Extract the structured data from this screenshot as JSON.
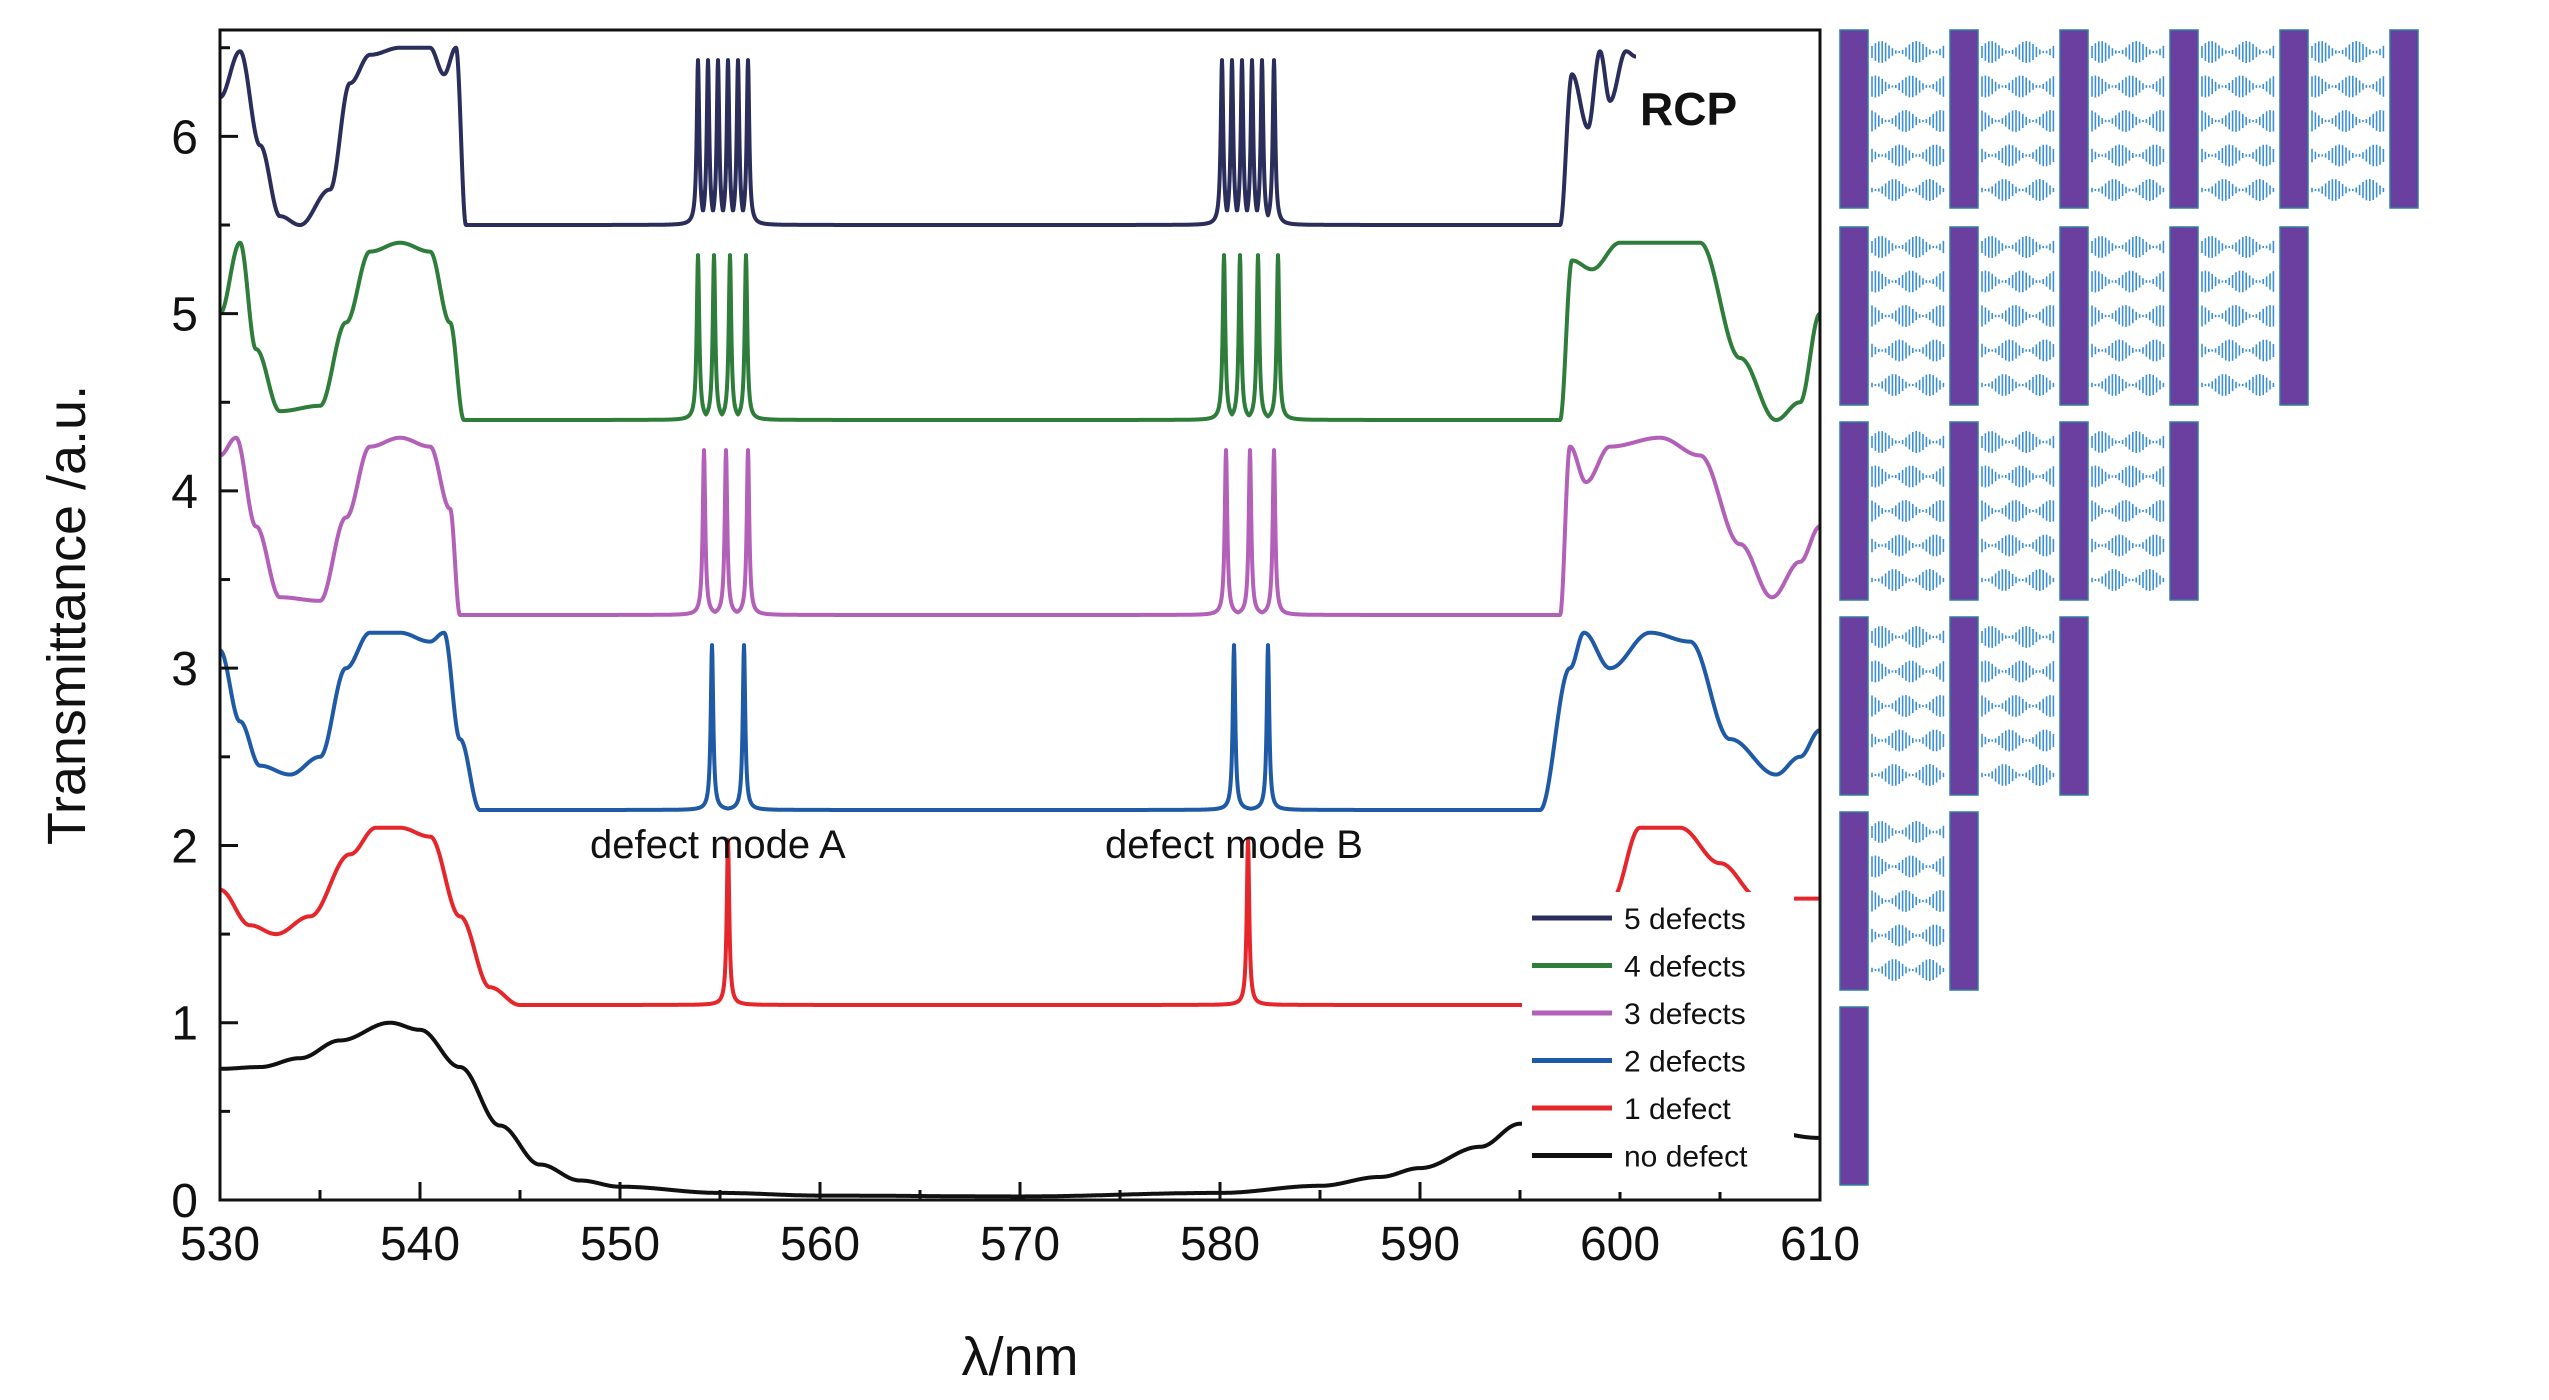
{
  "chart_data": {
    "type": "line",
    "title": "",
    "xlabel": "λ/nm",
    "ylabel": "Transmittance /a.u.",
    "xlim": [
      530,
      610
    ],
    "ylim": [
      0,
      6.6
    ],
    "xticks": [
      530,
      540,
      550,
      560,
      570,
      580,
      590,
      600,
      610
    ],
    "yticks": [
      0,
      1,
      2,
      3,
      4,
      5,
      6
    ],
    "xtick_labels": [
      "530",
      "540",
      "550",
      "560",
      "570",
      "580",
      "590",
      "600",
      "610"
    ],
    "ytick_labels": [
      "0",
      "1",
      "2",
      "3",
      "4",
      "5",
      "6"
    ],
    "grid": false,
    "legend_position": "bottom-right",
    "annotations": {
      "polarization": "RCP",
      "defect_mode_a": "defect mode A",
      "defect_mode_b": "defect mode B"
    },
    "series": [
      {
        "name": "5 defects",
        "color": "#2b2d5a",
        "offset": 5.5,
        "peaks_a": [
          553.9,
          554.4,
          554.9,
          555.4,
          555.9,
          556.4
        ],
        "peaks_b": [
          580.1,
          580.6,
          581.1,
          581.6,
          582.1,
          582.7
        ],
        "points": [
          [
            530,
            0.72
          ],
          [
            531,
            0.98
          ],
          [
            532,
            0.45
          ],
          [
            533,
            0.05
          ],
          [
            534,
            0.0
          ],
          [
            535.5,
            0.2
          ],
          [
            536.5,
            0.8
          ],
          [
            537.5,
            0.96
          ],
          [
            539,
            1.0
          ],
          [
            540.5,
            1.0
          ],
          [
            541.2,
            0.85
          ],
          [
            541.8,
            1.0
          ],
          [
            542.3,
            0.0
          ],
          [
            553,
            0.0
          ],
          [
            597,
            0.0
          ],
          [
            597.6,
            0.85
          ],
          [
            598.4,
            0.55
          ],
          [
            599,
            0.98
          ],
          [
            599.5,
            0.7
          ],
          [
            600.3,
            0.98
          ],
          [
            600.8,
            0.95
          ]
        ]
      },
      {
        "name": "4 defects",
        "color": "#2e7d3a",
        "offset": 4.4,
        "peaks_a": [
          553.9,
          554.7,
          555.5,
          556.3
        ],
        "peaks_b": [
          580.2,
          581.0,
          581.9,
          582.9
        ],
        "points": [
          [
            530,
            0.6
          ],
          [
            531,
            1.0
          ],
          [
            531.8,
            0.4
          ],
          [
            533,
            0.05
          ],
          [
            535,
            0.08
          ],
          [
            536.3,
            0.55
          ],
          [
            537.5,
            0.95
          ],
          [
            539,
            1.0
          ],
          [
            540.5,
            0.95
          ],
          [
            541.5,
            0.55
          ],
          [
            542.2,
            0.0
          ],
          [
            553,
            0.0
          ],
          [
            597,
            0.0
          ],
          [
            597.6,
            0.9
          ],
          [
            598.6,
            0.85
          ],
          [
            600,
            1.0
          ],
          [
            604,
            1.0
          ],
          [
            606,
            0.35
          ],
          [
            607.8,
            0.0
          ],
          [
            609,
            0.1
          ],
          [
            610,
            0.6
          ]
        ]
      },
      {
        "name": "3 defects",
        "color": "#b260b8",
        "offset": 3.3,
        "peaks_a": [
          554.2,
          555.3,
          556.4
        ],
        "peaks_b": [
          580.3,
          581.5,
          582.7
        ],
        "points": [
          [
            530,
            0.9
          ],
          [
            530.8,
            1.0
          ],
          [
            531.8,
            0.5
          ],
          [
            533,
            0.1
          ],
          [
            535,
            0.08
          ],
          [
            536.3,
            0.55
          ],
          [
            537.5,
            0.95
          ],
          [
            539,
            1.0
          ],
          [
            540.5,
            0.95
          ],
          [
            541.5,
            0.6
          ],
          [
            542,
            0.0
          ],
          [
            553,
            0.0
          ],
          [
            597,
            0.0
          ],
          [
            597.5,
            0.95
          ],
          [
            598.3,
            0.75
          ],
          [
            599.5,
            0.95
          ],
          [
            602,
            1.0
          ],
          [
            604,
            0.9
          ],
          [
            606,
            0.4
          ],
          [
            607.6,
            0.1
          ],
          [
            609,
            0.3
          ],
          [
            610,
            0.5
          ]
        ]
      },
      {
        "name": "2 defects",
        "color": "#1f5aa6",
        "offset": 2.2,
        "peaks_a": [
          554.6,
          556.2
        ],
        "peaks_b": [
          580.7,
          582.4
        ],
        "points": [
          [
            530,
            0.9
          ],
          [
            531,
            0.5
          ],
          [
            532,
            0.25
          ],
          [
            533.5,
            0.2
          ],
          [
            535,
            0.3
          ],
          [
            536.3,
            0.8
          ],
          [
            537.5,
            1.0
          ],
          [
            539,
            1.0
          ],
          [
            540.5,
            0.95
          ],
          [
            541.2,
            1.0
          ],
          [
            542,
            0.4
          ],
          [
            543,
            0.0
          ],
          [
            553,
            0.0
          ],
          [
            596,
            0.0
          ],
          [
            597.5,
            0.8
          ],
          [
            598.2,
            1.0
          ],
          [
            599.5,
            0.8
          ],
          [
            601.5,
            1.0
          ],
          [
            603.5,
            0.95
          ],
          [
            605.5,
            0.4
          ],
          [
            607.8,
            0.2
          ],
          [
            609,
            0.3
          ],
          [
            610,
            0.45
          ]
        ]
      },
      {
        "name": "1 defect",
        "color": "#e5262b",
        "offset": 1.1,
        "peaks_a": [
          555.4
        ],
        "peaks_b": [
          581.4
        ],
        "points": [
          [
            530,
            0.65
          ],
          [
            531.5,
            0.45
          ],
          [
            532.8,
            0.4
          ],
          [
            534.5,
            0.5
          ],
          [
            536.5,
            0.85
          ],
          [
            537.8,
            1.0
          ],
          [
            539,
            1.0
          ],
          [
            540.5,
            0.95
          ],
          [
            542,
            0.5
          ],
          [
            543.5,
            0.1
          ],
          [
            545,
            0.0
          ],
          [
            553,
            0.0
          ],
          [
            597,
            0.0
          ],
          [
            598.5,
            0.1
          ],
          [
            599.6,
            0.6
          ],
          [
            601,
            1.0
          ],
          [
            603,
            1.0
          ],
          [
            605,
            0.8
          ],
          [
            607,
            0.6
          ],
          [
            610,
            0.6
          ]
        ]
      },
      {
        "name": "no defect",
        "color": "#111111",
        "offset": 0,
        "peaks_a": [],
        "peaks_b": [],
        "points": [
          [
            530,
            0.74
          ],
          [
            532,
            0.75
          ],
          [
            534,
            0.8
          ],
          [
            536,
            0.9
          ],
          [
            538.5,
            1.0
          ],
          [
            540,
            0.96
          ],
          [
            542,
            0.75
          ],
          [
            544,
            0.42
          ],
          [
            546,
            0.2
          ],
          [
            548,
            0.11
          ],
          [
            550,
            0.075
          ],
          [
            555,
            0.04
          ],
          [
            560,
            0.025
          ],
          [
            570,
            0.02
          ],
          [
            580,
            0.04
          ],
          [
            585,
            0.08
          ],
          [
            588,
            0.13
          ],
          [
            590,
            0.18
          ],
          [
            593,
            0.3
          ],
          [
            595,
            0.43
          ],
          [
            597,
            0.55
          ],
          [
            600,
            0.55
          ],
          [
            605,
            0.45
          ],
          [
            610,
            0.35
          ]
        ]
      }
    ]
  },
  "schematics": {
    "rows": [
      5,
      4,
      3,
      2,
      1,
      0
    ],
    "plate_color": "#6b3fa0",
    "layer_color": "#3a8fd6"
  }
}
